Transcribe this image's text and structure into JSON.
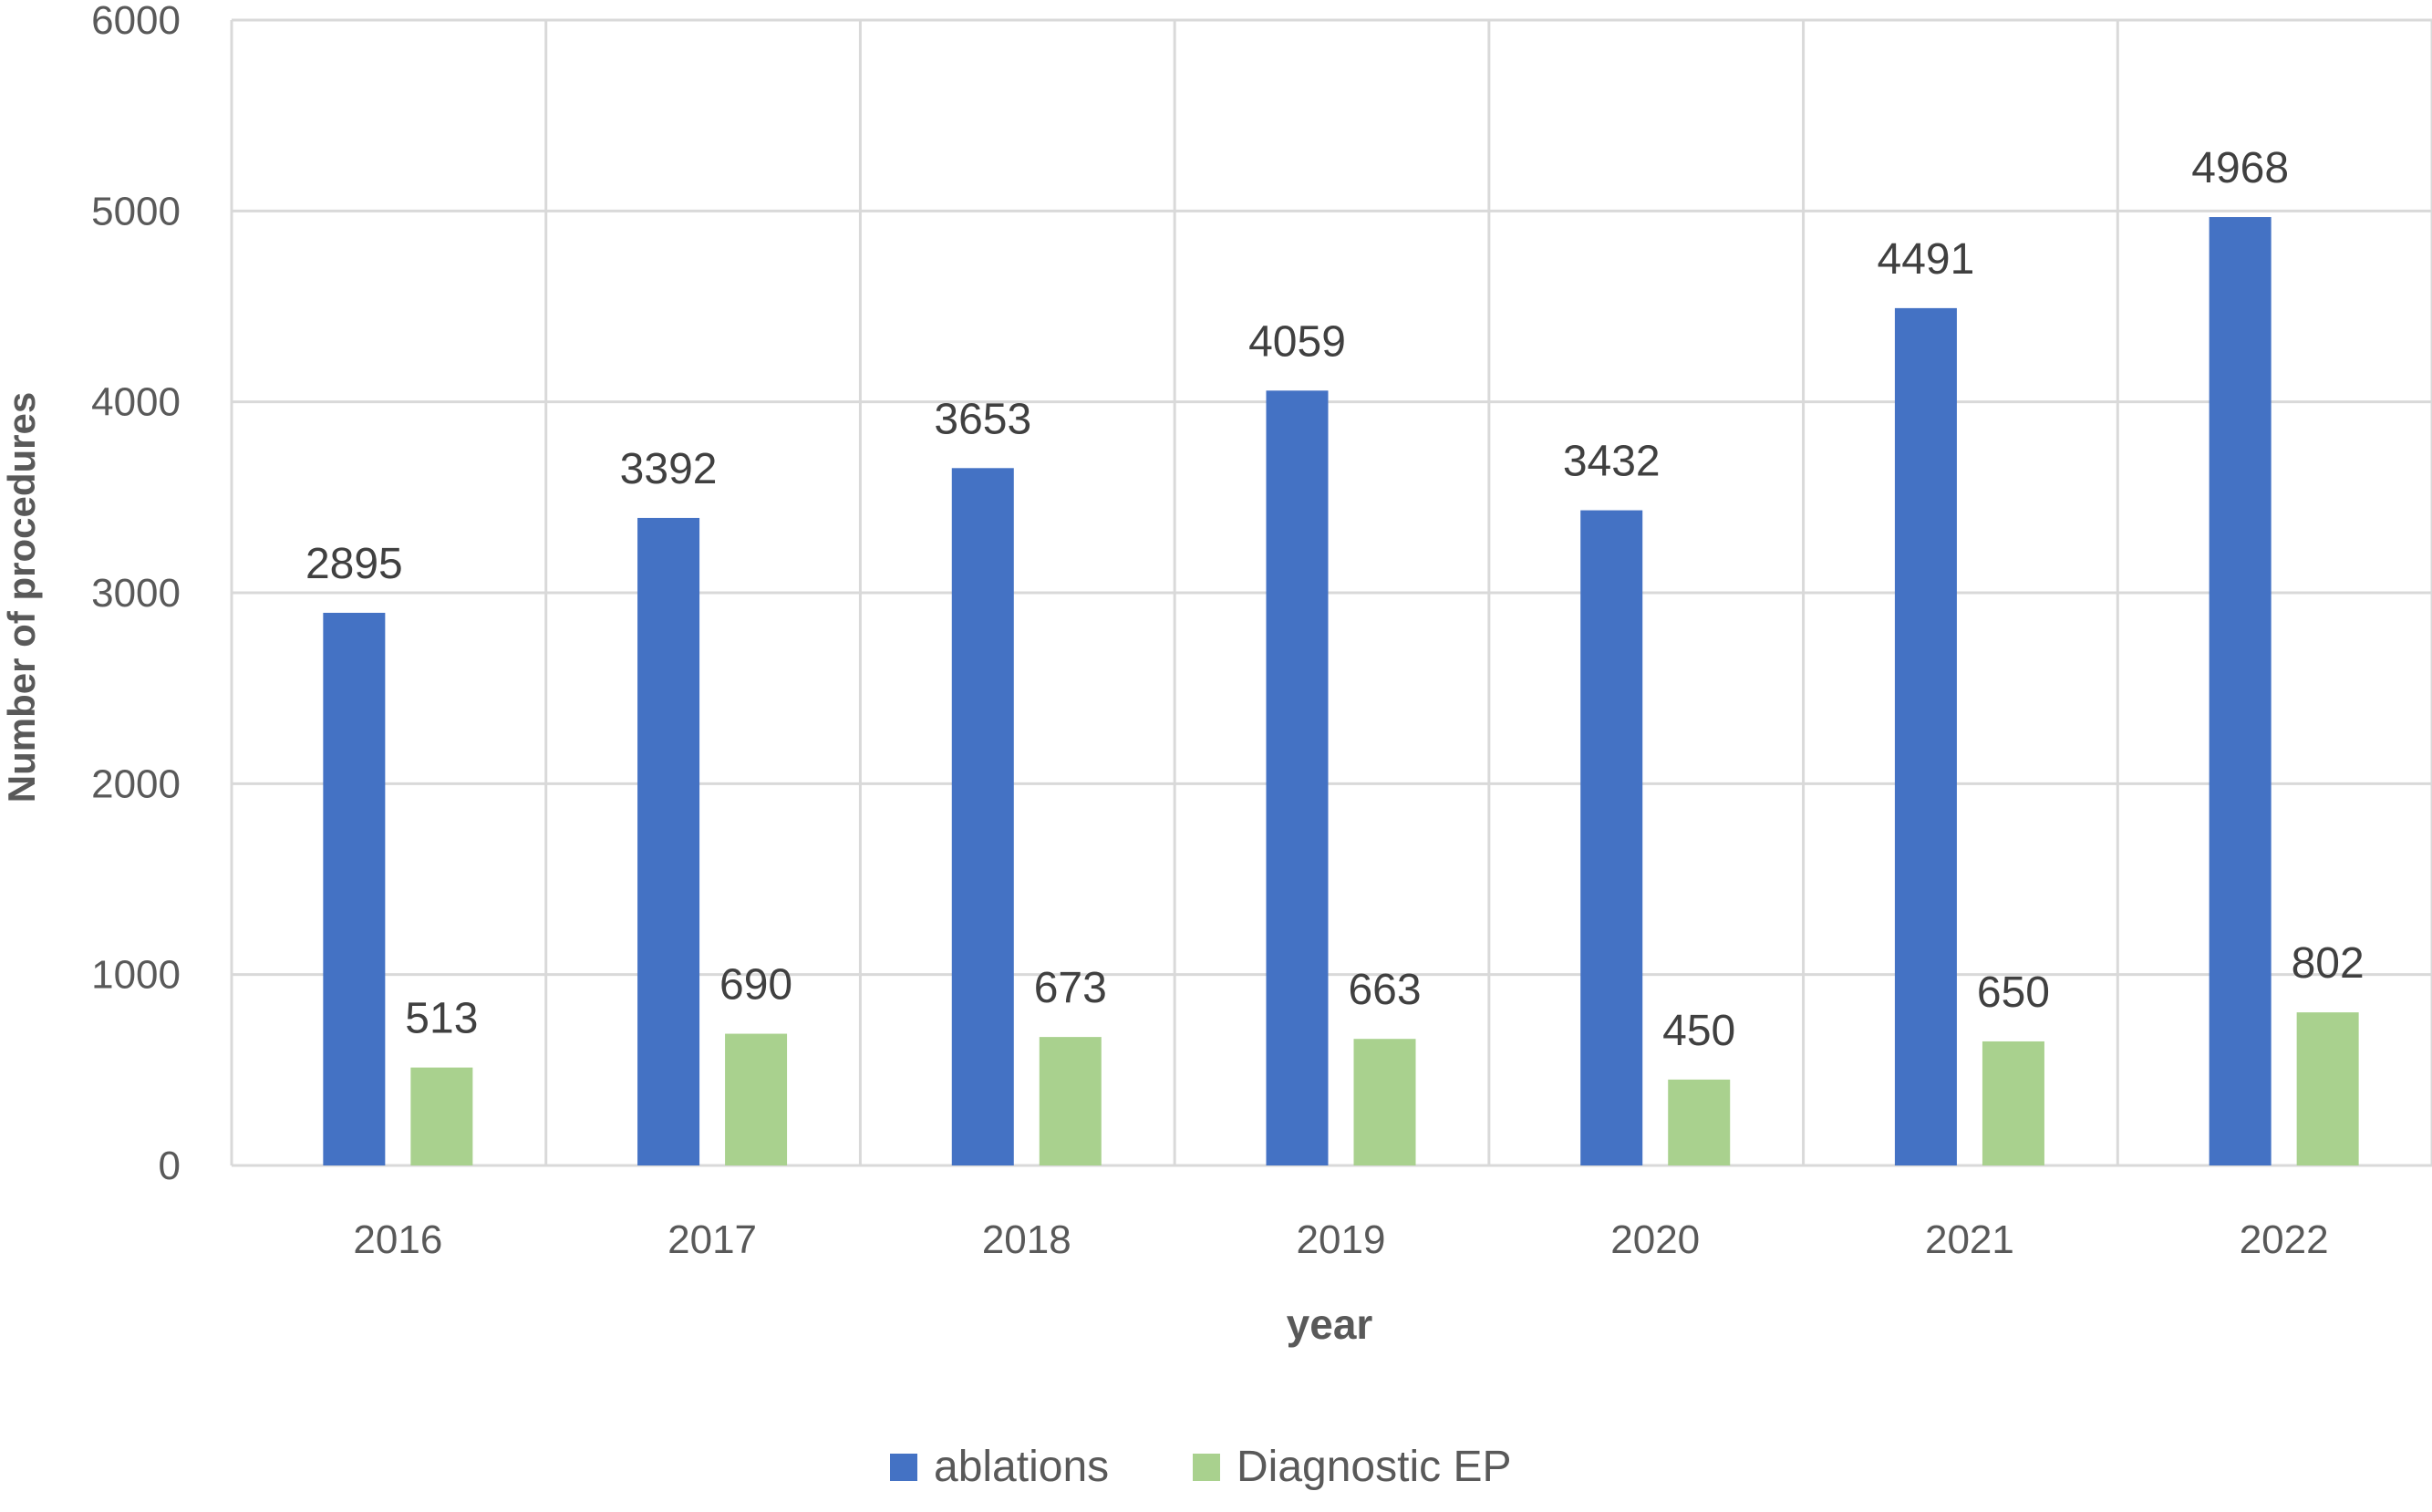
{
  "chart_data": {
    "type": "bar",
    "title": "",
    "xlabel": "year",
    "ylabel": "Number of procedures",
    "ylim": [
      0,
      6000
    ],
    "yticks": [
      "0",
      "1000",
      "2000",
      "3000",
      "4000",
      "5000",
      "6000"
    ],
    "categories": [
      "2016",
      "2017",
      "2018",
      "2019",
      "2020",
      "2021",
      "2022"
    ],
    "grid": true,
    "legend_position": "bottom",
    "series": [
      {
        "name": "ablations",
        "color": "#4472C4",
        "values": [
          2895,
          3392,
          3653,
          4059,
          3432,
          4491,
          4968
        ],
        "labels": [
          "2895",
          "3392",
          "3653",
          "4059",
          "3432",
          "4491",
          "4968"
        ]
      },
      {
        "name": "Diagnostic EP",
        "color": "#A9D18E",
        "values": [
          513,
          690,
          673,
          663,
          450,
          650,
          802
        ],
        "labels": [
          "513",
          "690",
          "673",
          "663",
          "450",
          "650",
          "802"
        ]
      }
    ]
  }
}
